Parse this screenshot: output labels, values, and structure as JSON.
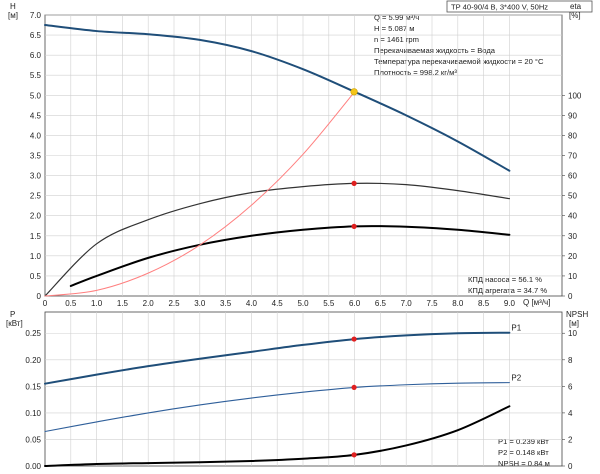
{
  "header": {
    "title": "TP 40-90/4 B, 3*400 V, 50Hz"
  },
  "info_top": [
    "Q = 5.99 м³/ч",
    "H = 5.087 м",
    "n = 1461 rpm",
    "Перекачиваемая жидкость = Вода",
    "Температура перекачиваемой жидкости = 20 °C",
    "Плотность = 998.2 кг/м³"
  ],
  "info_eff": [
    "КПД насоса = 56.1 %",
    "КПД агрегата = 34.7 %"
  ],
  "info_bottom": [
    "P1 = 0.239 кВт",
    "P2 = 0.148 кВт",
    "NPSH = 0.84 м"
  ],
  "axes": {
    "head_label": "H",
    "head_unit": "[м]",
    "eta_label": "eta",
    "eta_unit": "[%]",
    "flow_label": "Q [м³/ч]",
    "power_label": "P",
    "power_unit": "[кВт]",
    "npsh_label": "NPSH",
    "npsh_unit": "[м]"
  },
  "chart_data": [
    {
      "type": "line",
      "xlim": [
        0,
        10.0
      ],
      "x_ticks": [
        "0",
        "0.5",
        "1.0",
        "1.5",
        "2.0",
        "2.5",
        "3.0",
        "3.5",
        "4.0",
        "4.5",
        "5.0",
        "5.5",
        "6.0",
        "6.5",
        "7.0",
        "7.5",
        "8.0",
        "8.5",
        "9.0"
      ],
      "y_left_ticks": [
        "0",
        "0.5",
        "1.0",
        "1.5",
        "2.0",
        "2.5",
        "3.0",
        "3.5",
        "4.0",
        "4.5",
        "5.0",
        "5.5",
        "6.0",
        "6.5",
        "7.0"
      ],
      "y_left_lim": [
        0,
        7.0
      ],
      "y_right_ticks": [
        "0",
        "10",
        "20",
        "30",
        "40",
        "50",
        "60",
        "70",
        "80",
        "90",
        "100"
      ],
      "y_right_lim": [
        0,
        140
      ],
      "grid": true,
      "series": [
        {
          "name": "H",
          "axis": "left",
          "color": "#1f4e79",
          "width": 2,
          "x": [
            0,
            1,
            2,
            3,
            4,
            5,
            6,
            7,
            8,
            9
          ],
          "y": [
            6.75,
            6.6,
            6.52,
            6.38,
            6.1,
            5.65,
            5.087,
            4.5,
            3.85,
            3.12
          ]
        },
        {
          "name": "eta",
          "axis": "right",
          "color": "#333333",
          "width": 1.2,
          "x": [
            0,
            1,
            2,
            3,
            4,
            5,
            6,
            7,
            8,
            9
          ],
          "y": [
            0,
            26,
            38,
            46,
            51.5,
            54.5,
            56.1,
            55.5,
            52.5,
            48.5
          ]
        },
        {
          "name": "eta_unit",
          "axis": "right",
          "color": "#000000",
          "width": 2,
          "x": [
            0.5,
            1,
            2,
            3,
            4,
            5,
            6,
            7,
            8,
            9
          ],
          "y": [
            5,
            10,
            19,
            25.5,
            30,
            33,
            34.7,
            34.5,
            33,
            30.5
          ]
        },
        {
          "name": "system",
          "axis": "left",
          "color": "#ff7f7f",
          "width": 1,
          "x": [
            0,
            1,
            2,
            3,
            4,
            5,
            6
          ],
          "y": [
            0,
            0.14,
            0.57,
            1.27,
            2.26,
            3.53,
            5.087
          ]
        }
      ],
      "markers": [
        {
          "x": 5.99,
          "y": 5.087,
          "axis": "left",
          "color": "#f5c518"
        },
        {
          "x": 5.99,
          "y": 56.1,
          "axis": "right",
          "color": "#e02020"
        },
        {
          "x": 5.99,
          "y": 34.7,
          "axis": "right",
          "color": "#e02020"
        }
      ]
    },
    {
      "type": "line",
      "xlim": [
        0,
        10.0
      ],
      "y_left_ticks": [
        "0.00",
        "0.05",
        "0.10",
        "0.15",
        "0.20",
        "0.25"
      ],
      "y_left_lim": [
        0,
        0.29
      ],
      "y_right_ticks": [
        "0",
        "2",
        "4",
        "6",
        "8",
        "10"
      ],
      "y_right_lim": [
        0,
        11.6
      ],
      "grid": true,
      "series": [
        {
          "name": "P1",
          "axis": "left",
          "color": "#1f4e79",
          "width": 2,
          "x": [
            0,
            1,
            2,
            3,
            4,
            5,
            6,
            7,
            8,
            9
          ],
          "y": [
            0.155,
            0.172,
            0.188,
            0.202,
            0.215,
            0.228,
            0.239,
            0.246,
            0.25,
            0.251
          ]
        },
        {
          "name": "P2",
          "axis": "left",
          "color": "#2f5f9a",
          "width": 1.1,
          "x": [
            0,
            1,
            2,
            3,
            4,
            5,
            6,
            7,
            8,
            9
          ],
          "y": [
            0.065,
            0.083,
            0.1,
            0.115,
            0.128,
            0.139,
            0.148,
            0.153,
            0.156,
            0.157
          ]
        },
        {
          "name": "NPSH",
          "axis": "right",
          "color": "#000000",
          "width": 2,
          "x": [
            0,
            1,
            2,
            3,
            4,
            5,
            6,
            7,
            8,
            9
          ],
          "y": [
            0.0,
            0.15,
            0.22,
            0.28,
            0.38,
            0.55,
            0.84,
            1.55,
            2.7,
            4.5
          ]
        }
      ],
      "labels": [
        {
          "text": "P1",
          "x": 9.0,
          "y": 0.251,
          "axis": "left"
        },
        {
          "text": "P2",
          "x": 9.0,
          "y": 0.157,
          "axis": "left"
        }
      ],
      "markers": [
        {
          "x": 5.99,
          "y": 0.239,
          "axis": "left",
          "color": "#e02020"
        },
        {
          "x": 5.99,
          "y": 0.148,
          "axis": "left",
          "color": "#e02020"
        },
        {
          "x": 5.99,
          "y": 0.84,
          "axis": "right",
          "color": "#e02020"
        }
      ]
    }
  ]
}
